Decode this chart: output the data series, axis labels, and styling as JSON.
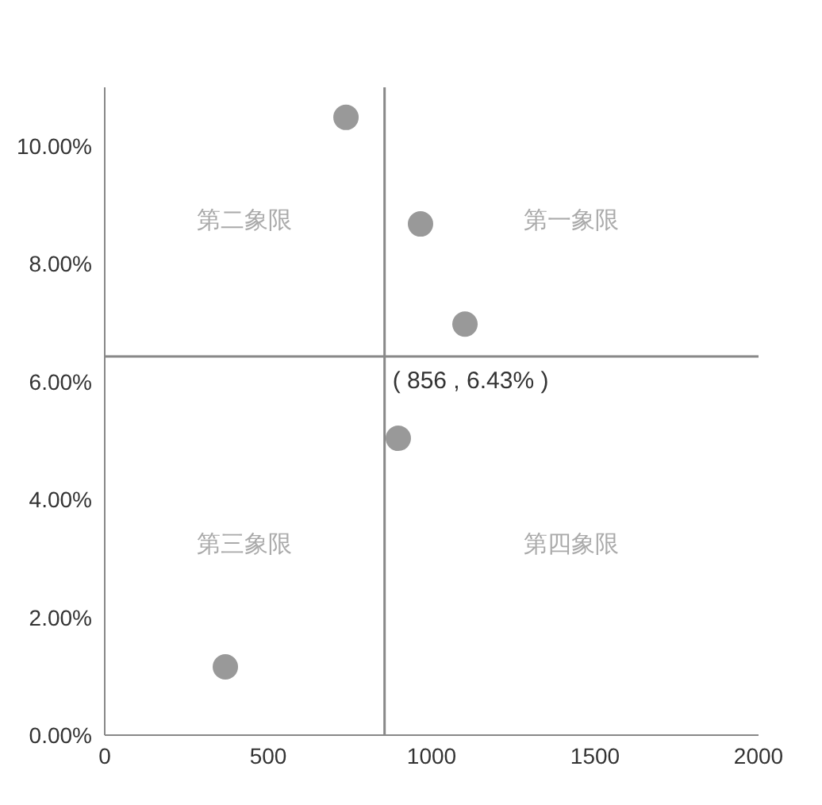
{
  "chart_data": {
    "type": "scatter",
    "x": [
      738,
      966,
      1102,
      898,
      369
    ],
    "values": [
      10.49,
      8.68,
      6.98,
      5.04,
      1.16
    ],
    "color": "#999999",
    "marker": "circle",
    "xlim": [
      0,
      2000
    ],
    "xticks": [
      0,
      500,
      1000,
      1500,
      2000
    ],
    "ylim": [
      0,
      11
    ],
    "yticks": [
      {
        "value": 0,
        "label": "0.00%"
      },
      {
        "value": 2,
        "label": "2.00%"
      },
      {
        "value": 4,
        "label": "4.00%"
      },
      {
        "value": 6,
        "label": "6.00%"
      },
      {
        "value": 8,
        "label": "8.00%"
      },
      {
        "value": 10,
        "label": "10.00%"
      }
    ],
    "grid": false,
    "legend": false,
    "ref_lines": [
      {
        "axis": "x",
        "value": 856,
        "color": "#888888"
      },
      {
        "axis": "y",
        "value": 6.43,
        "color": "#888888"
      }
    ],
    "annotations": [
      {
        "text": "( 856 , 6.43% )",
        "x": 856,
        "y": 6.43
      },
      "第一象限",
      "第二象限",
      "第三象限",
      "第四象限"
    ]
  }
}
